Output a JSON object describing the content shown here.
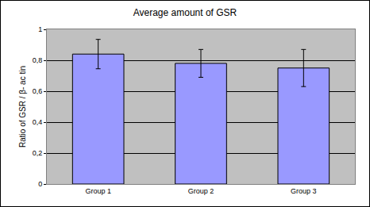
{
  "chart_data": {
    "type": "bar",
    "title": "Average amount of GSR",
    "y_label": "Ratio of GSR / β- ac tin",
    "categories": [
      "Group 1",
      "Group 2",
      "Group 3"
    ],
    "values": [
      0.84,
      0.78,
      0.75
    ],
    "error": [
      0.095,
      0.09,
      0.12
    ],
    "color": "#9999ff",
    "ylim": [
      0,
      1
    ],
    "yticks": [
      0,
      {
        "value": 0.2,
        "label": "0,2"
      },
      {
        "value": 0.4,
        "label": "0,4"
      },
      {
        "value": 0.6,
        "label": "0,6"
      },
      {
        "value": 0.8,
        "label": "0,8"
      },
      1
    ],
    "grid": true
  }
}
